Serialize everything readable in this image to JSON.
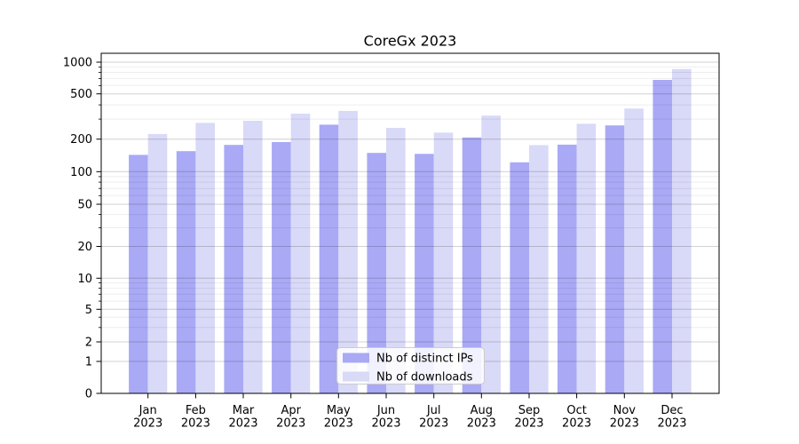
{
  "figure": {
    "background": "#ffffff"
  },
  "chart_data": {
    "type": "bar",
    "title": "CoreGx 2023",
    "categories": [
      "Jan 2023",
      "Feb 2023",
      "Mar 2023",
      "Apr 2023",
      "May 2023",
      "Jun 2023",
      "Jul 2023",
      "Aug 2023",
      "Sep 2023",
      "Oct 2023",
      "Nov 2023",
      "Dec 2023"
    ],
    "series": [
      {
        "name": "Nb of distinct IPs",
        "color": "#a9a9f5",
        "values": [
          143,
          155,
          177,
          188,
          268,
          149,
          146,
          207,
          122,
          178,
          264,
          678
        ]
      },
      {
        "name": "Nb of downloads",
        "color": "#d9d9f8",
        "values": [
          222,
          278,
          290,
          335,
          354,
          251,
          228,
          322,
          176,
          273,
          371,
          861
        ]
      }
    ],
    "xlabel": "",
    "ylabel": "",
    "yscale": "asinh (log-like above 1, linear near 0)",
    "ylim": [
      0,
      1200
    ],
    "y_major_ticks": [
      0,
      1,
      2,
      5,
      10,
      20,
      50,
      100,
      200,
      500,
      1000
    ],
    "y_minor_ticks": [
      3,
      4,
      6,
      7,
      8,
      9,
      30,
      40,
      60,
      70,
      80,
      90,
      300,
      400,
      600,
      700,
      800,
      900
    ],
    "grid": "major and minor horizontal gridlines, drawn over bars",
    "legend_position": "lower center"
  },
  "colors": {
    "axis": "#000000",
    "grid_major": "rgba(0,0,0,0.18)",
    "grid_minor": "rgba(0,0,0,0.07)",
    "legend_bg": "rgba(255,255,255,0.85)",
    "legend_border": "#cccccc"
  }
}
